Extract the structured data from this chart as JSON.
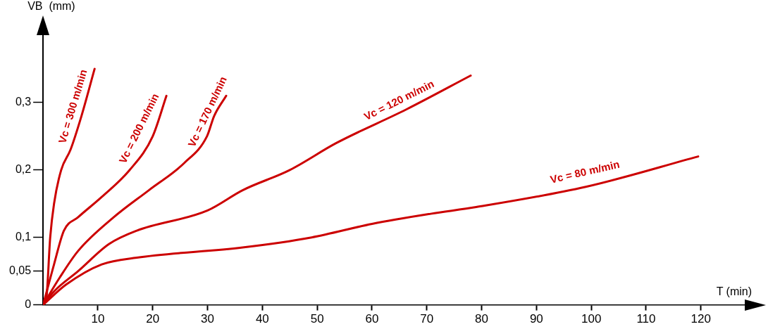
{
  "chart_data": {
    "type": "line",
    "xlabel": "T (min)",
    "ylabel": "VB  (mm)",
    "xlim": [
      0,
      128
    ],
    "ylim": [
      0,
      0.4
    ],
    "xticks": [
      10,
      20,
      30,
      40,
      50,
      60,
      70,
      80,
      90,
      100,
      110,
      120
    ],
    "yticks": [
      {
        "value": 0,
        "label": "0"
      },
      {
        "value": 0.05,
        "label": "0,05"
      },
      {
        "value": 0.1,
        "label": "0,1"
      },
      {
        "value": 0.2,
        "label": "0,2"
      },
      {
        "value": 0.3,
        "label": "0,3"
      }
    ],
    "grid": false,
    "legend": false,
    "marker": "none",
    "line_style": "solid",
    "series": [
      {
        "name": "Vc = 300 m/min",
        "color": "#cc0000",
        "x": [
          0,
          0.6,
          1.3,
          2,
          3.3,
          5,
          7,
          9.4
        ],
        "values": [
          0,
          0.01,
          0.1,
          0.15,
          0.2,
          0.23,
          0.28,
          0.35
        ]
      },
      {
        "name": "Vc = 200 m/min",
        "color": "#cc0000",
        "x": [
          0,
          1,
          2,
          3.8,
          6.4,
          10.7,
          15.8,
          20,
          22.5
        ],
        "values": [
          0,
          0.03,
          0.06,
          0.11,
          0.13,
          0.16,
          0.2,
          0.25,
          0.31
        ]
      },
      {
        "name": "Vc = 170 m/min",
        "color": "#cc0000",
        "x": [
          0,
          3,
          6.4,
          12.9,
          19.3,
          25.7,
          29.9,
          31.2,
          33.4
        ],
        "values": [
          0,
          0.04,
          0.08,
          0.13,
          0.17,
          0.21,
          0.25,
          0.28,
          0.31
        ]
      },
      {
        "name": "Vc = 120 m/min",
        "color": "#cc0000",
        "x": [
          0,
          2,
          6.4,
          12,
          17.1,
          30,
          36.4,
          45,
          53.5,
          66.3,
          78
        ],
        "values": [
          0,
          0.02,
          0.05,
          0.09,
          0.11,
          0.14,
          0.17,
          0.2,
          0.24,
          0.29,
          0.34
        ]
      },
      {
        "name": "Vc = 80 m/min",
        "color": "#cc0000",
        "x": [
          0,
          4.2,
          10.7,
          17.1,
          36.4,
          49,
          60,
          70.7,
          79,
          99,
          119.5
        ],
        "values": [
          0,
          0.03,
          0.06,
          0.07,
          0.085,
          0.1,
          0.12,
          0.135,
          0.145,
          0.175,
          0.22
        ]
      }
    ]
  }
}
